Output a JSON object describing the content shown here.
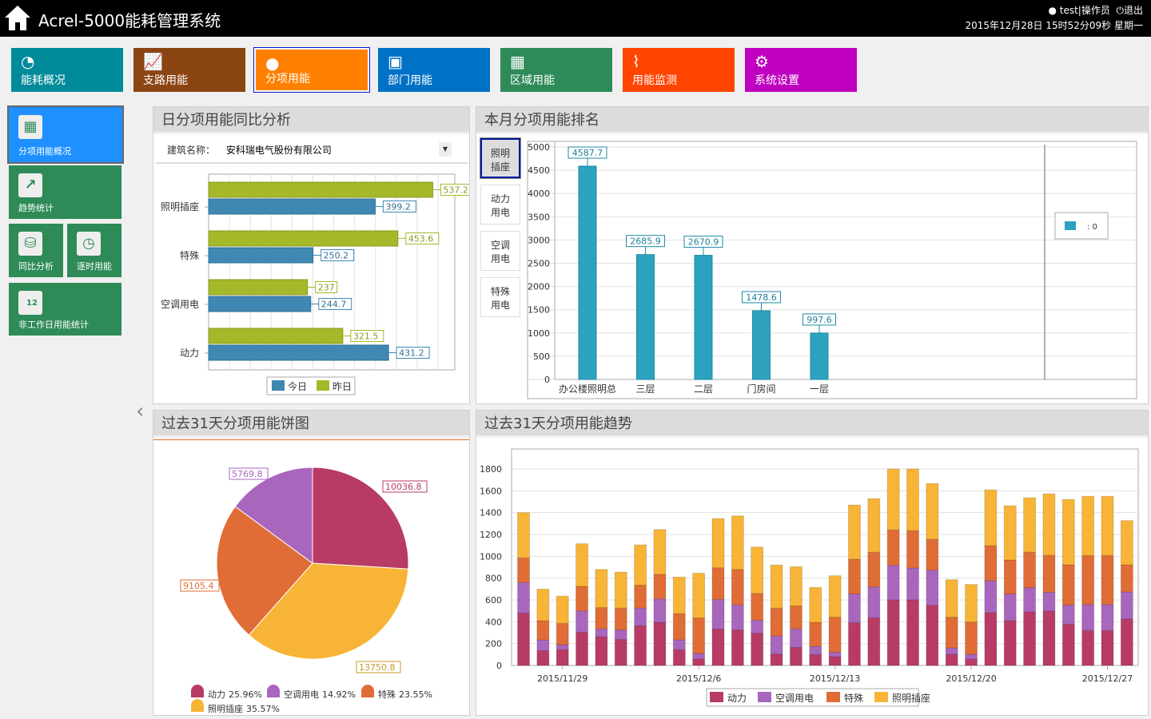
{
  "header": {
    "title": "Acrel-5000能耗管理系统",
    "user": "test|操作员",
    "logout": "退出",
    "datetime": "2015年12月28日 15时52分09秒 星期一"
  },
  "nav": [
    {
      "label": "能耗概况",
      "icon": "chart-pie-icon",
      "color": "#008B9A"
    },
    {
      "label": "支路用能",
      "icon": "presentation-chart-icon",
      "color": "#8B4513"
    },
    {
      "label": "分项用能",
      "icon": "user-icon",
      "color": "#FF8000",
      "active": true
    },
    {
      "label": "部门用能",
      "icon": "cube-icon",
      "color": "#0072C6"
    },
    {
      "label": "区域用能",
      "icon": "grid-icon",
      "color": "#2E8B57"
    },
    {
      "label": "用能监测",
      "icon": "pulse-icon",
      "color": "#FF4500"
    },
    {
      "label": "系统设置",
      "icon": "gear-icon",
      "color": "#C000C0"
    }
  ],
  "sidebar": [
    {
      "label": "分项用能概况",
      "icon": "map-icon",
      "active": true
    },
    {
      "label": "趋势统计",
      "icon": "trend-icon"
    },
    {
      "label": "同比分析",
      "icon": "database-icon"
    },
    {
      "label": "逐时用能",
      "icon": "clock-icon"
    },
    {
      "label": "非工作日用能统计",
      "icon": "calendar-icon",
      "badge": "12"
    }
  ],
  "panel1": {
    "title": "日分项用能同比分析",
    "building_label": "建筑名称：",
    "building_value": "安科瑞电气股份有限公司"
  },
  "panel2": {
    "title": "本月分项用能排名",
    "tabs": [
      "照明\n插座",
      "动力\n用电",
      "空调\n用电",
      "特殊\n用电"
    ],
    "legend": ": 0"
  },
  "panel3": {
    "title": "过去31天分项用能饼图"
  },
  "panel4": {
    "title": "过去31天分项用能趋势"
  },
  "chart_data": [
    {
      "type": "bar",
      "orientation": "horizontal",
      "categories": [
        "照明插座",
        "特殊",
        "空调用电",
        "动力"
      ],
      "series": [
        {
          "name": "昨日",
          "color": "#A5B829",
          "values": [
            537.2,
            453.6,
            237,
            321.5
          ]
        },
        {
          "name": "今日",
          "color": "#3F88B3",
          "values": [
            399.2,
            250.2,
            244.7,
            431.2
          ]
        }
      ],
      "xlim": [
        0,
        590
      ],
      "grid": true,
      "legend": "bottom"
    },
    {
      "type": "bar",
      "categories": [
        "办公楼照明总",
        "三层",
        "二层",
        "门房间",
        "一层"
      ],
      "values": [
        4587.7,
        2685.9,
        2670.9,
        1478.6,
        997.6
      ],
      "color": "#2CA2BF",
      "ylim": [
        0,
        5000
      ],
      "yticks": [
        "0",
        "500",
        "1000",
        "1500",
        "2000",
        "2500",
        "3000",
        "3500",
        "4000",
        "4500",
        "5000"
      ],
      "grid": true,
      "legend": "right"
    },
    {
      "type": "pie",
      "slices": [
        {
          "name": "动力",
          "value": 10036.8,
          "label": "10036.8",
          "percent": "25.96%",
          "color": "#B83B66"
        },
        {
          "name": "照明插座",
          "value": 13750.8,
          "label": "13750.8",
          "percent": "35.57%",
          "color": "#F8B436"
        },
        {
          "name": "特殊",
          "value": 9105.4,
          "label": "9105.4",
          "percent": "23.55%",
          "color": "#E06C36"
        },
        {
          "name": "空调用电",
          "value": 5769.8,
          "label": "5769.8",
          "percent": "14.92%",
          "color": "#A866BD"
        }
      ],
      "legend": "bottom"
    },
    {
      "type": "bar",
      "stacked": true,
      "ylim": [
        0,
        1900
      ],
      "yticks": [
        "0",
        "200",
        "400",
        "600",
        "800",
        "1000",
        "1200",
        "1400",
        "1600",
        "1800"
      ],
      "xticks": [
        {
          "index": 2,
          "label": "2015/11/29"
        },
        {
          "index": 9,
          "label": "2015/12/6"
        },
        {
          "index": 16,
          "label": "2015/12/13"
        },
        {
          "index": 23,
          "label": "2015/12/20"
        },
        {
          "index": 30,
          "label": "2015/12/27"
        }
      ],
      "x": [
        "2015/11/27",
        "2015/11/28",
        "2015/11/29",
        "2015/11/30",
        "2015/12/1",
        "2015/12/2",
        "2015/12/3",
        "2015/12/4",
        "2015/12/5",
        "2015/12/6",
        "2015/12/7",
        "2015/12/8",
        "2015/12/9",
        "2015/12/10",
        "2015/12/11",
        "2015/12/12",
        "2015/12/13",
        "2015/12/14",
        "2015/12/15",
        "2015/12/16",
        "2015/12/17",
        "2015/12/18",
        "2015/12/19",
        "2015/12/20",
        "2015/12/21",
        "2015/12/22",
        "2015/12/23",
        "2015/12/24",
        "2015/12/25",
        "2015/12/26",
        "2015/12/27",
        "2015/12/28"
      ],
      "series": [
        {
          "name": "动力",
          "color": "#B83B66",
          "values": [
            480,
            135,
            145,
            305,
            265,
            240,
            365,
            395,
            145,
            60,
            335,
            325,
            295,
            105,
            165,
            100,
            80,
            393,
            437,
            602,
            602,
            551,
            102,
            58,
            485,
            412,
            492,
            500,
            378,
            320,
            320,
            427
          ]
        },
        {
          "name": "空调用电",
          "color": "#A866BD",
          "values": [
            280,
            100,
            45,
            195,
            70,
            85,
            160,
            215,
            90,
            50,
            270,
            230,
            120,
            165,
            170,
            75,
            41,
            262,
            283,
            315,
            291,
            322,
            58,
            44,
            291,
            243,
            221,
            170,
            175,
            238,
            238,
            247
          ]
        },
        {
          "name": "特殊",
          "color": "#E06C36",
          "values": [
            225,
            175,
            195,
            225,
            195,
            200,
            210,
            225,
            240,
            325,
            290,
            325,
            245,
            255,
            210,
            220,
            321,
            318,
            318,
            325,
            342,
            282,
            282,
            296,
            321,
            311,
            325,
            339,
            369,
            449,
            449,
            248
          ]
        },
        {
          "name": "照明插座",
          "color": "#F8B436",
          "values": [
            415,
            290,
            250,
            390,
            350,
            330,
            370,
            410,
            335,
            410,
            450,
            490,
            425,
            395,
            360,
            320,
            380,
            497,
            490,
            558,
            565,
            512,
            344,
            344,
            511,
            497,
            498,
            563,
            599,
            543,
            543,
            405
          ]
        }
      ],
      "grid": true,
      "legend": "bottom"
    }
  ]
}
